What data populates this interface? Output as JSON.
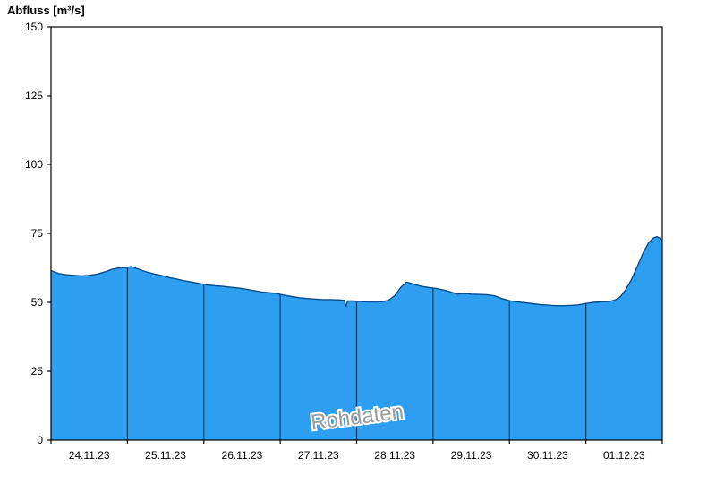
{
  "title": "Abfluss [m³/s]",
  "watermark": "Rohdaten",
  "chart_data": {
    "type": "area",
    "title": "Abfluss [m³/s]",
    "xlabel": "",
    "ylabel": "Abfluss [m³/s]",
    "ylim": [
      0,
      150
    ],
    "yticks": [
      0,
      25,
      50,
      75,
      100,
      125,
      150
    ],
    "xlim": [
      0,
      8
    ],
    "x_unit": "days from 24.11.23 00:00",
    "x_tick_labels": [
      "24.11.23",
      "25.11.23",
      "26.11.23",
      "27.11.23",
      "28.11.23",
      "29.11.23",
      "30.11.23",
      "01.12.23"
    ],
    "day_dividers": [
      1,
      2,
      3,
      4,
      5,
      6,
      7
    ],
    "legend": "none",
    "grid": "vertical day-divider lines drawn only inside the filled area",
    "watermark": "Rohdaten",
    "series": [
      {
        "name": "Abfluss",
        "x": [
          0,
          0.05,
          0.1,
          0.15,
          0.2,
          0.3,
          0.4,
          0.5,
          0.6,
          0.7,
          0.8,
          0.9,
          1,
          1.05,
          1.1,
          1.15,
          1.25,
          1.35,
          1.45,
          1.55,
          1.65,
          1.75,
          1.85,
          1.95,
          2.05,
          2.15,
          2.25,
          2.35,
          2.45,
          2.55,
          2.65,
          2.75,
          2.85,
          2.95,
          3.05,
          3.15,
          3.25,
          3.35,
          3.45,
          3.55,
          3.65,
          3.75,
          3.8,
          3.84,
          3.86,
          3.88,
          3.95,
          4.05,
          4.15,
          4.25,
          4.35,
          4.42,
          4.5,
          4.58,
          4.65,
          4.7,
          4.78,
          4.85,
          4.95,
          5.05,
          5.15,
          5.25,
          5.32,
          5.4,
          5.5,
          5.6,
          5.7,
          5.8,
          5.9,
          6,
          6.1,
          6.2,
          6.3,
          6.4,
          6.5,
          6.6,
          6.7,
          6.8,
          6.9,
          7,
          7.1,
          7.2,
          7.3,
          7.38,
          7.45,
          7.52,
          7.6,
          7.68,
          7.75,
          7.82,
          7.88,
          7.93,
          7.97,
          8
        ],
        "values": [
          61.5,
          61,
          60.5,
          60.2,
          60,
          59.8,
          59.6,
          59.8,
          60.2,
          61,
          62,
          62.5,
          62.7,
          63,
          62.5,
          62,
          61,
          60.3,
          59.7,
          59,
          58.4,
          57.8,
          57.3,
          56.8,
          56.3,
          56,
          55.8,
          55.5,
          55.2,
          54.8,
          54.3,
          53.8,
          53.5,
          53.2,
          52.6,
          52.1,
          51.7,
          51.4,
          51.2,
          51,
          51,
          50.9,
          50.8,
          50.7,
          48.3,
          50.5,
          50.5,
          50.3,
          50.2,
          50.2,
          50.3,
          50.8,
          52.5,
          55.5,
          57.3,
          57,
          56.3,
          55.8,
          55.4,
          55,
          54.4,
          53.6,
          53,
          53.2,
          53,
          52.9,
          52.8,
          52.4,
          51.4,
          50.6,
          50.2,
          49.9,
          49.5,
          49.2,
          49,
          48.8,
          48.8,
          48.9,
          49.1,
          49.6,
          50,
          50.2,
          50.3,
          50.8,
          52,
          54.5,
          58.5,
          63.5,
          68,
          71.5,
          73.3,
          73.8,
          73.2,
          72.3
        ]
      }
    ],
    "colors": {
      "fill": "#2E9FF0",
      "outline": "#084B8A",
      "day_divider": "#0D3A66",
      "axis": "#000000",
      "tick_label": "#000000",
      "watermark": "#9B9B9B",
      "background": "#FFFFFF"
    }
  }
}
